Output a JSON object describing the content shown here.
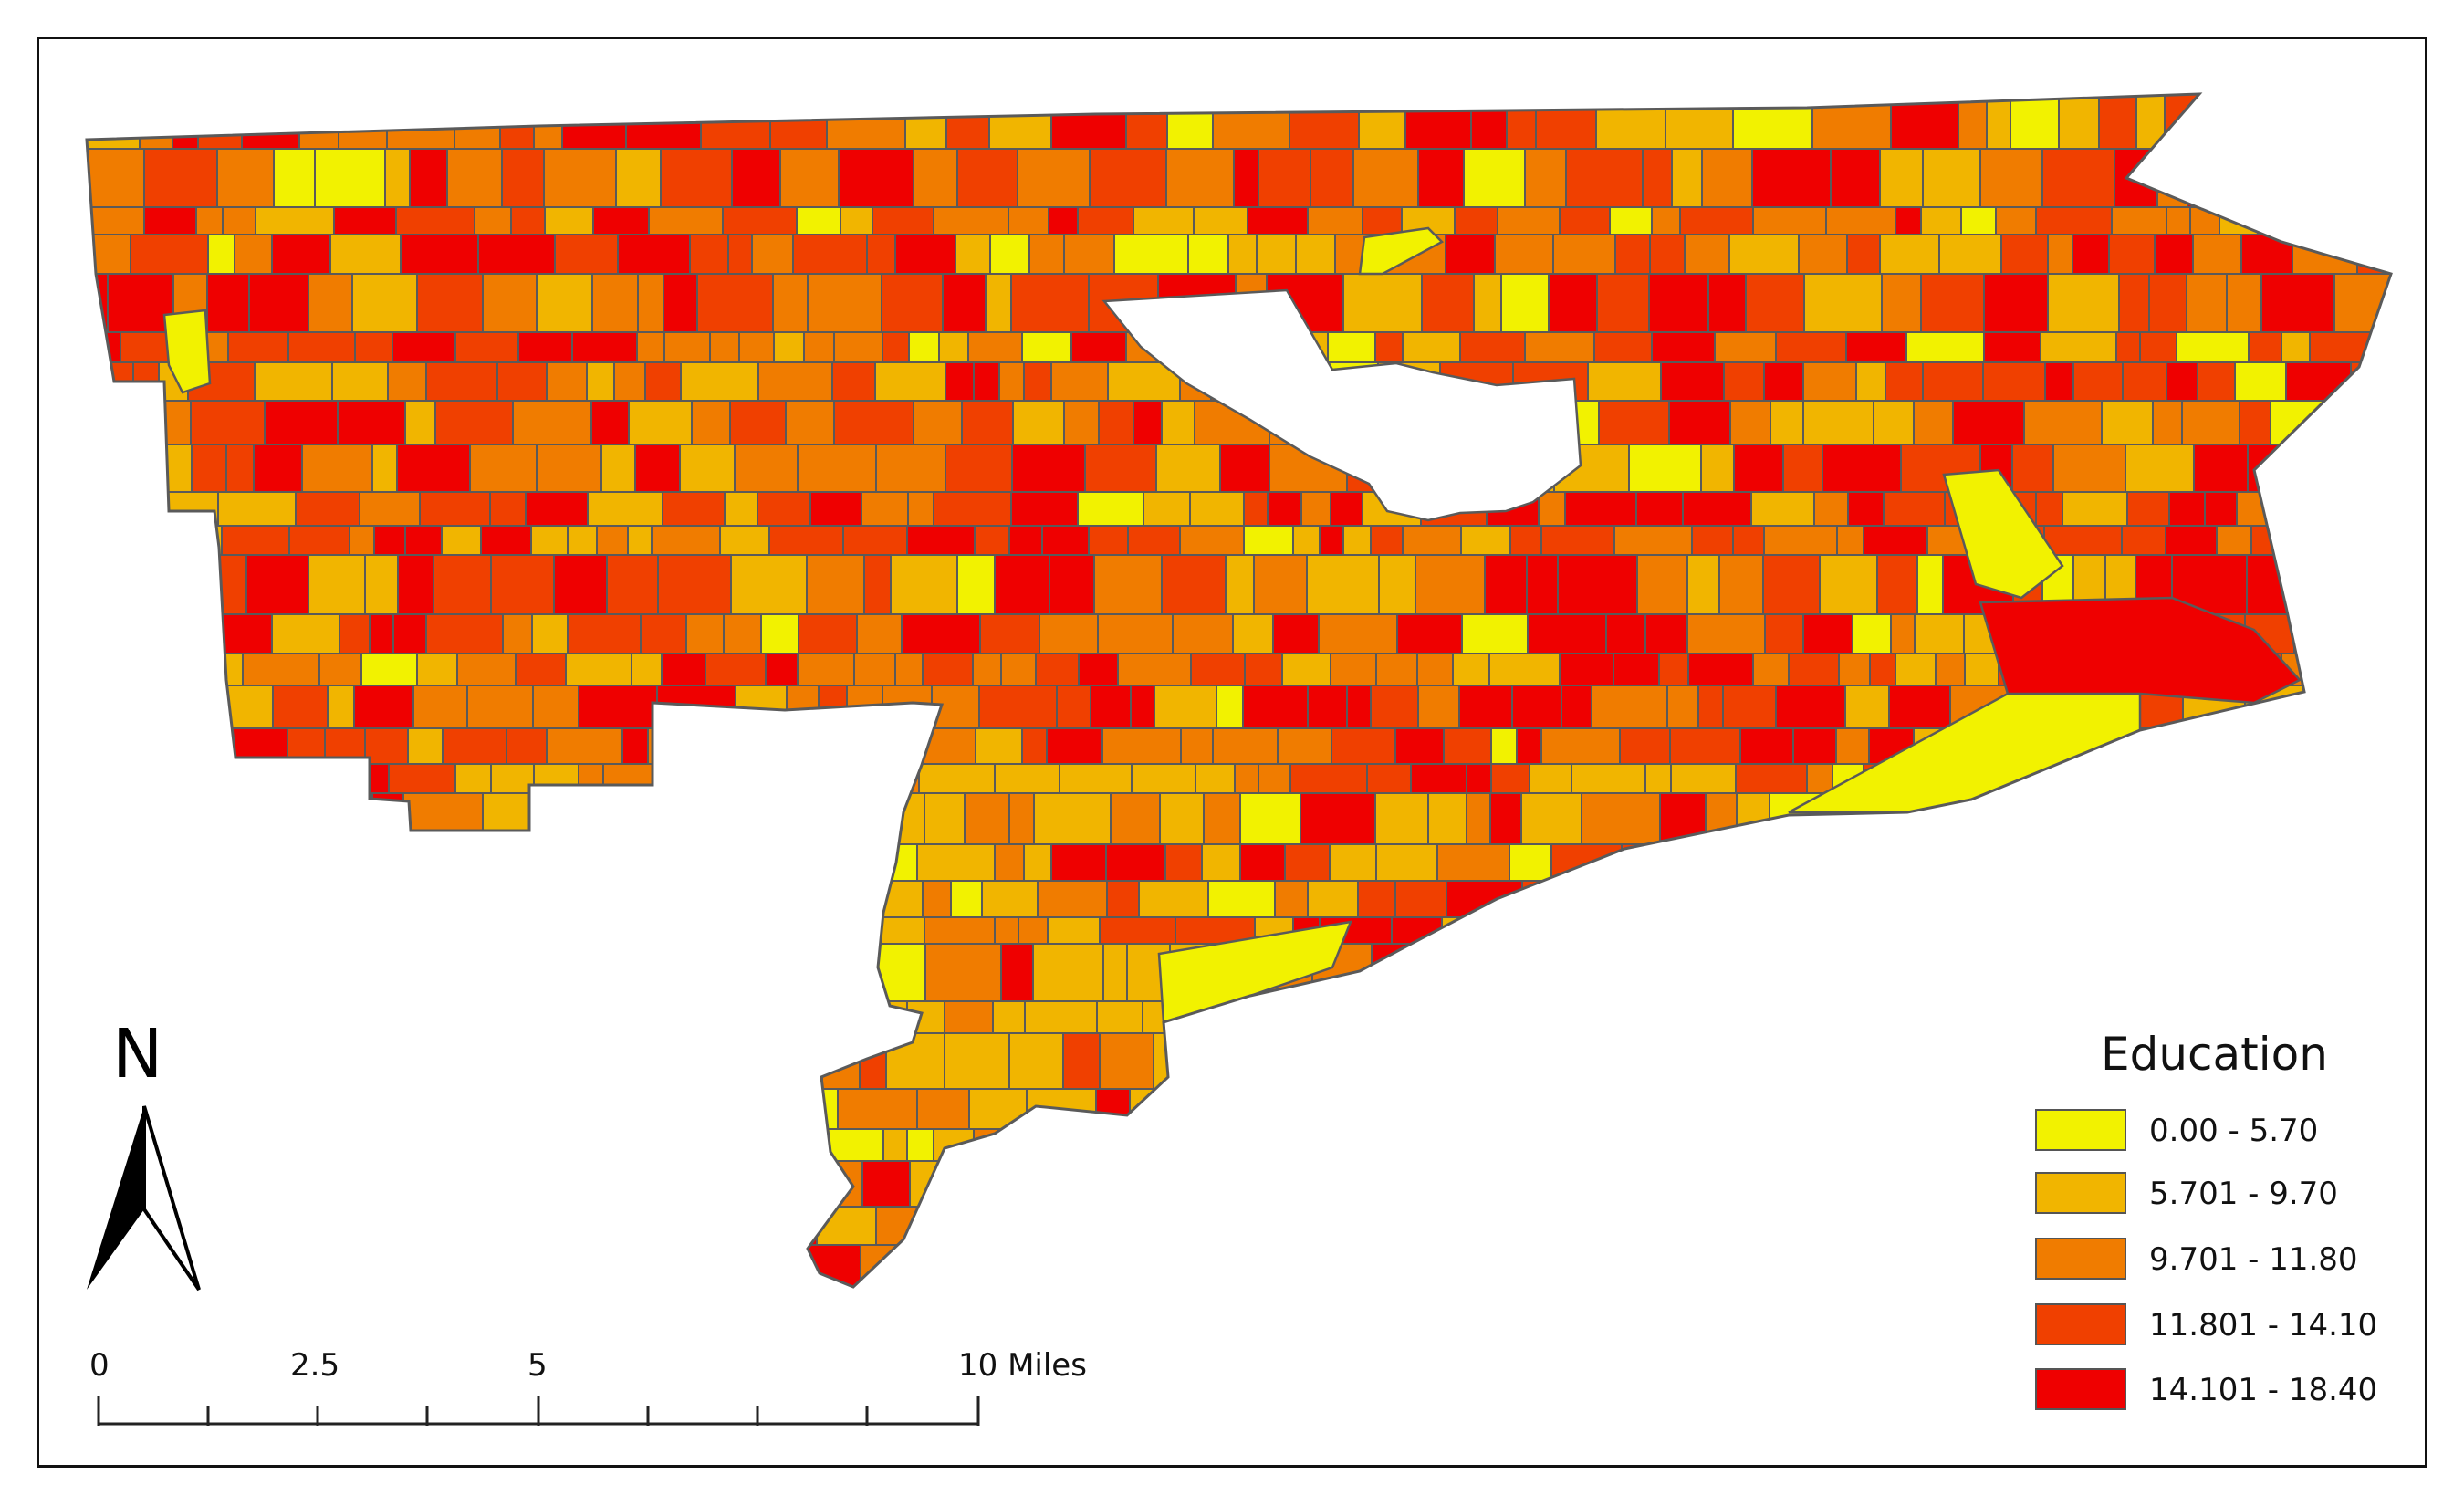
{
  "legend": {
    "title": "Education",
    "classes": [
      {
        "label": "0.00 - 5.70",
        "color": "#f2f200"
      },
      {
        "label": "5.701 - 9.70",
        "color": "#f1b500"
      },
      {
        "label": "9.701 - 11.80",
        "color": "#f07c00"
      },
      {
        "label": "11.801 - 14.10",
        "color": "#f04000"
      },
      {
        "label": "14.101 - 18.40",
        "color": "#ef0000"
      }
    ]
  },
  "north_arrow": {
    "letter": "N",
    "icon": "north-arrow-icon"
  },
  "scale_bar": {
    "labels": [
      "0",
      "2.5",
      "5",
      "10 Miles"
    ]
  },
  "colors": {
    "border": "#5a5a5a",
    "frame": "#111111"
  }
}
